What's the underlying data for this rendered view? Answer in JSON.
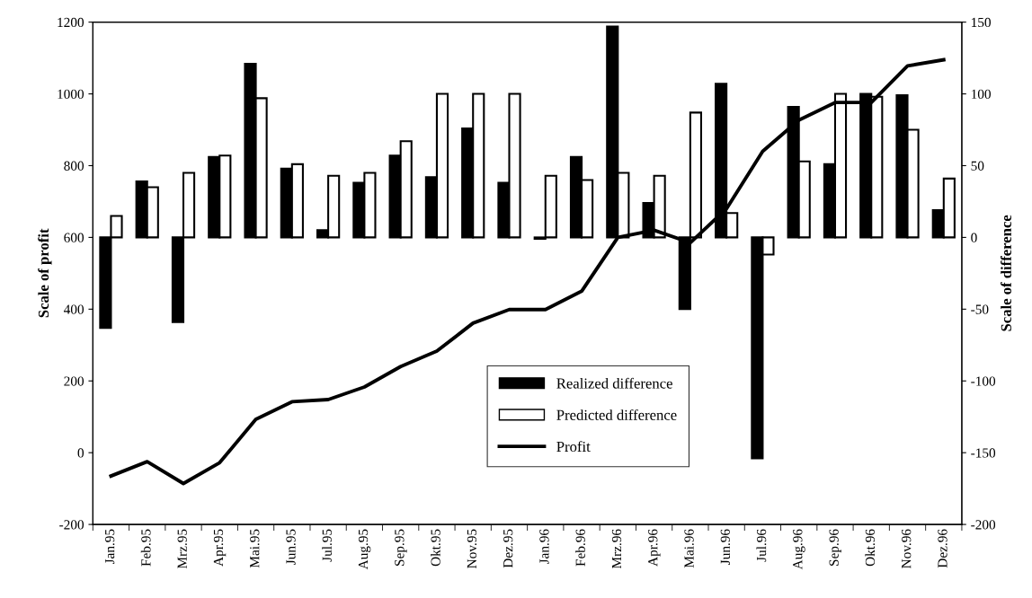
{
  "chart_data": {
    "type": "bar",
    "ylabel": "Scale of profit",
    "y2label": "Scale of difference",
    "categories": [
      "Jan.95",
      "Feb.95",
      "Mrz.95",
      "Apr.95",
      "Mai.95",
      "Jun.95",
      "Jul.95",
      "Aug.95",
      "Sep.95",
      "Okt.95",
      "Nov.95",
      "Dez.95",
      "Jan.96",
      "Feb.96",
      "Mrz.96",
      "Apr.96",
      "Mai.96",
      "Jun.96",
      "Jul.96",
      "Aug.96",
      "Sep.96",
      "Okt.96",
      "Nov.96",
      "Dez.96"
    ],
    "series": [
      {
        "name": "Realized difference",
        "axis": "y2",
        "color": "#000000",
        "values": [
          -63,
          39,
          -59,
          56,
          121,
          48,
          5,
          38,
          57,
          42,
          76,
          38,
          -1,
          56,
          147,
          24,
          -50,
          107,
          -154,
          91,
          51,
          100,
          99,
          19
        ]
      },
      {
        "name": "Predicted difference",
        "axis": "y2",
        "color": "#ffffff",
        "values": [
          15,
          35,
          45,
          57,
          97,
          51,
          43,
          45,
          67,
          100,
          100,
          100,
          43,
          40,
          45,
          43,
          87,
          17,
          -12,
          53,
          100,
          98,
          75,
          41
        ]
      },
      {
        "name": "Profit",
        "type": "line",
        "color": "#000000",
        "values": [
          -65,
          -25,
          -86,
          -28,
          93,
          142,
          148,
          183,
          240,
          283,
          361,
          399,
          399,
          450,
          600,
          620,
          585,
          680,
          840,
          927,
          976,
          976,
          1078,
          1095
        ]
      }
    ],
    "ylim": [
      -200,
      1200
    ],
    "yticks": [
      -200,
      0,
      200,
      400,
      600,
      800,
      1000,
      1200
    ],
    "y2lim": [
      -200,
      150
    ],
    "y2ticks": [
      -200,
      -150,
      -100,
      -50,
      0,
      50,
      100,
      150
    ],
    "grid": false,
    "legend": "bottom",
    "marker": "none",
    "line_style": "solid"
  }
}
